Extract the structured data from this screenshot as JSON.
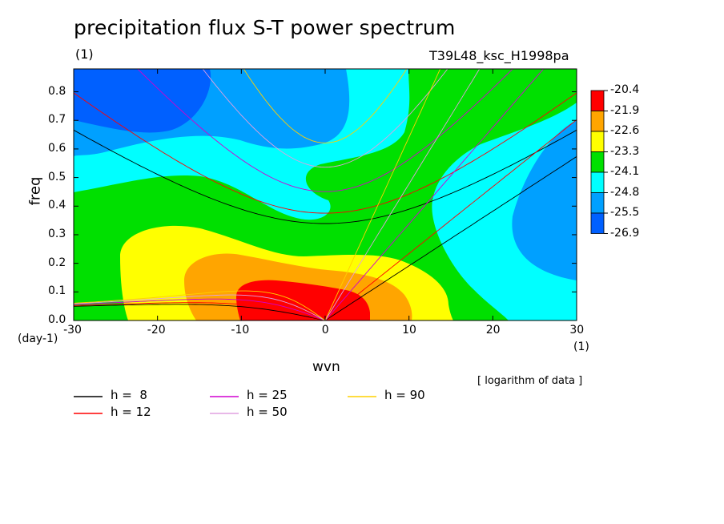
{
  "title": "precipitation flux S-T power spectrum",
  "unit_label": "(1)",
  "run_name": "T39L48_ksc_H1998pa",
  "note": "[ logarithm of data ]",
  "colors": {
    "c1": "#ff0000",
    "c2": "#ffa500",
    "c3": "#ffff00",
    "c4": "#00e000",
    "c5": "#00ffff",
    "c6": "#00a0ff",
    "c7": "#0060ff"
  },
  "chart_data": {
    "type": "heatmap",
    "title": "precipitation flux S-T power spectrum",
    "xlabel": "wvn",
    "ylabel": "freq",
    "x_unit": "(1)",
    "y_unit": "(day-1)",
    "xlim": [
      -30,
      30
    ],
    "ylim": [
      0,
      0.88
    ],
    "x_ticks": [
      "-30",
      "-20",
      "-10",
      "0",
      "10",
      "20",
      "30"
    ],
    "y_ticks": [
      "0.0",
      "0.1",
      "0.2",
      "0.3",
      "0.4",
      "0.5",
      "0.6",
      "0.7",
      "0.8"
    ],
    "colorbar_levels": [
      "-20.4",
      "-21.9",
      "-22.6",
      "-23.3",
      "-24.1",
      "-24.8",
      "-25.5",
      "-26.9"
    ],
    "dispersion_curves": [
      {
        "label": "h =  8",
        "h": 8,
        "color": "#000000"
      },
      {
        "label": "h = 12",
        "h": 12,
        "color": "#ff0000"
      },
      {
        "label": "h = 25",
        "h": 25,
        "color": "#d000d0"
      },
      {
        "label": "h = 50",
        "h": 50,
        "color": "#e0a0e0"
      },
      {
        "label": "h = 90",
        "h": 90,
        "color": "#ffd000"
      }
    ]
  }
}
